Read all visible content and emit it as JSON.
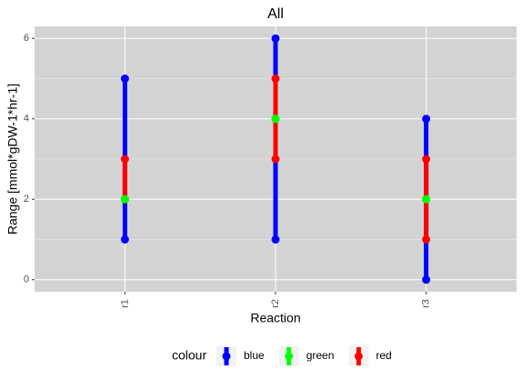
{
  "chart_data": {
    "type": "range",
    "title": "All",
    "x_label": "Reaction",
    "y_label": "Range [mmol*gDW-1*hr-1]",
    "categories": [
      "r1",
      "r2",
      "r3"
    ],
    "ylim": [
      -0.3,
      6.3
    ],
    "yticks": [
      0,
      2,
      4,
      6
    ],
    "grid": true,
    "legend_title": "colour",
    "legend_position": "bottom",
    "series": [
      {
        "name": "blue",
        "color": "#0000ff",
        "low": [
          1,
          1,
          0
        ],
        "high": [
          5,
          6,
          4
        ]
      },
      {
        "name": "red",
        "color": "#ff0000",
        "low": [
          2,
          3,
          1
        ],
        "high": [
          3,
          5,
          3
        ]
      },
      {
        "name": "green",
        "color": "#00ff00",
        "low": [
          2,
          4,
          2
        ],
        "high": [
          2,
          4,
          2
        ]
      }
    ],
    "legend_order": [
      0,
      2,
      1
    ]
  }
}
